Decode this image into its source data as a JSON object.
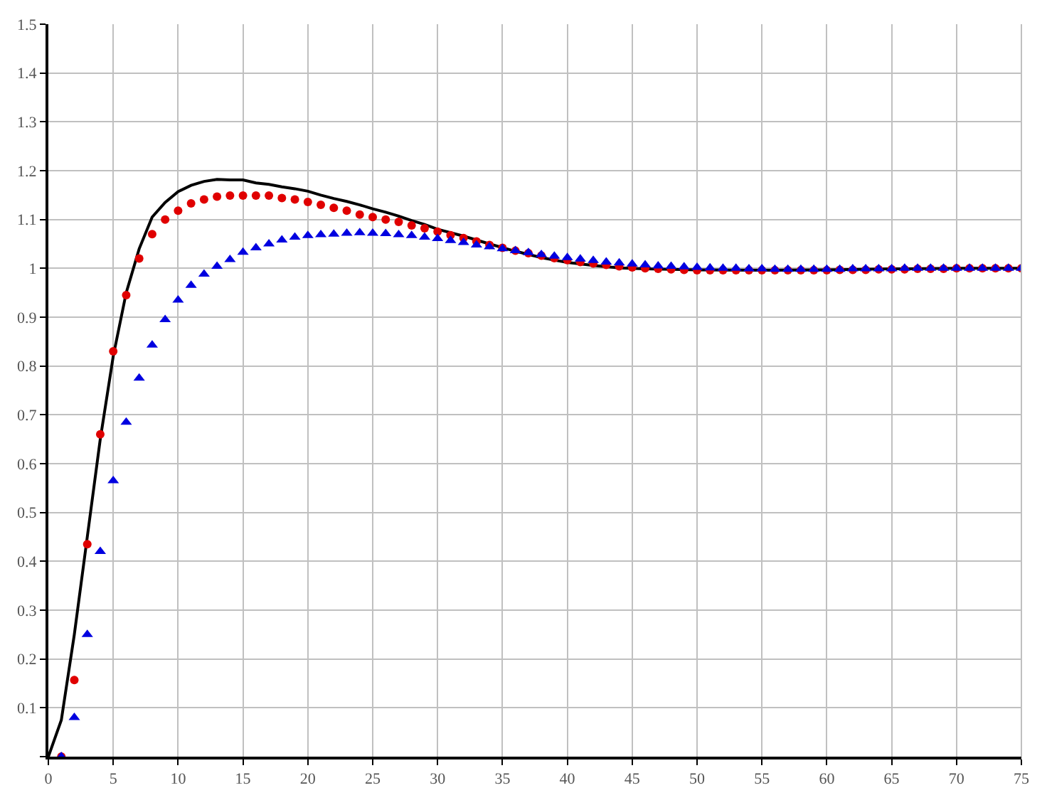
{
  "chart_data": {
    "type": "scatter",
    "xlim": [
      0,
      75
    ],
    "ylim": [
      0,
      1.5
    ],
    "xticks": [
      0,
      5,
      10,
      15,
      20,
      25,
      30,
      35,
      40,
      45,
      50,
      55,
      60,
      65,
      70,
      75
    ],
    "yticks": [
      {
        "value": 0,
        "label": null
      },
      0.1,
      0.2,
      0.3,
      0.4,
      0.5,
      0.6,
      0.7,
      0.8,
      0.9,
      1,
      1.1,
      1.2,
      1.3,
      1.4,
      1.5
    ],
    "grid": true,
    "series": [
      {
        "type": "line",
        "color": "#000000",
        "marker": "none",
        "line_style": "solid",
        "x": [
          0,
          1,
          2,
          3,
          4,
          5,
          6,
          7,
          8,
          9,
          10,
          11,
          12,
          13,
          14,
          15,
          16,
          17,
          18,
          19,
          20,
          21,
          22,
          23,
          24,
          25,
          26,
          27,
          28,
          29,
          30,
          32,
          34,
          36,
          38,
          40,
          42,
          44,
          46,
          50,
          55,
          60,
          65,
          70,
          75
        ],
        "values": [
          0,
          0.075,
          0.25,
          0.45,
          0.65,
          0.82,
          0.95,
          1.04,
          1.105,
          1.135,
          1.157,
          1.17,
          1.178,
          1.182,
          1.181,
          1.181,
          1.175,
          1.172,
          1.167,
          1.163,
          1.158,
          1.15,
          1.143,
          1.137,
          1.13,
          1.122,
          1.115,
          1.107,
          1.098,
          1.09,
          1.08,
          1.066,
          1.05,
          1.035,
          1.022,
          1.012,
          1.006,
          1.001,
          0.999,
          0.997,
          0.996,
          0.997,
          0.999,
          1.0,
          1.0
        ]
      },
      {
        "color": "#e00000",
        "marker": "circle",
        "x": [
          1,
          2,
          3,
          4,
          5,
          6,
          7,
          8,
          9,
          10,
          11,
          12,
          13,
          14,
          15,
          16,
          17,
          18,
          19,
          20,
          21,
          22,
          23,
          24,
          25,
          26,
          27,
          28,
          29,
          30,
          31,
          32,
          33,
          34,
          35,
          36,
          37,
          38,
          39,
          40,
          41,
          42,
          43,
          44,
          45,
          46,
          47,
          48,
          49,
          50,
          51,
          52,
          53,
          54,
          55,
          56,
          57,
          58,
          59,
          60,
          61,
          62,
          63,
          64,
          65,
          66,
          67,
          68,
          69,
          70,
          71,
          72,
          73,
          74,
          75
        ],
        "values": [
          0,
          0.157,
          0.435,
          0.66,
          0.83,
          0.945,
          1.02,
          1.07,
          1.1,
          1.118,
          1.133,
          1.141,
          1.147,
          1.149,
          1.149,
          1.149,
          1.149,
          1.144,
          1.141,
          1.136,
          1.13,
          1.124,
          1.118,
          1.11,
          1.105,
          1.1,
          1.095,
          1.088,
          1.082,
          1.075,
          1.068,
          1.062,
          1.055,
          1.048,
          1.042,
          1.036,
          1.031,
          1.026,
          1.021,
          1.017,
          1.013,
          1.01,
          1.007,
          1.004,
          1.002,
          1.0,
          0.999,
          0.998,
          0.997,
          0.996,
          0.996,
          0.996,
          0.996,
          0.996,
          0.996,
          0.996,
          0.996,
          0.996,
          0.996,
          0.996,
          0.997,
          0.997,
          0.997,
          0.998,
          0.998,
          0.998,
          0.999,
          0.999,
          0.999,
          1.0,
          1.0,
          1.0,
          1.0,
          1.0,
          1.0
        ]
      },
      {
        "color": "#0000e0",
        "marker": "triangle",
        "x": [
          1,
          2,
          3,
          4,
          5,
          6,
          7,
          8,
          9,
          10,
          11,
          12,
          13,
          14,
          15,
          16,
          17,
          18,
          19,
          20,
          21,
          22,
          23,
          24,
          25,
          26,
          27,
          28,
          29,
          30,
          31,
          32,
          33,
          34,
          35,
          36,
          37,
          38,
          39,
          40,
          41,
          42,
          43,
          44,
          45,
          46,
          47,
          48,
          49,
          50,
          51,
          52,
          53,
          54,
          55,
          56,
          57,
          58,
          59,
          60,
          61,
          62,
          63,
          64,
          65,
          66,
          67,
          68,
          69,
          70,
          71,
          72,
          73,
          74,
          75
        ],
        "values": [
          0,
          0.08,
          0.25,
          0.42,
          0.565,
          0.685,
          0.775,
          0.843,
          0.895,
          0.935,
          0.965,
          0.988,
          1.004,
          1.018,
          1.033,
          1.042,
          1.05,
          1.058,
          1.064,
          1.067,
          1.069,
          1.07,
          1.072,
          1.073,
          1.072,
          1.071,
          1.069,
          1.067,
          1.064,
          1.061,
          1.057,
          1.053,
          1.048,
          1.044,
          1.04,
          1.036,
          1.032,
          1.028,
          1.025,
          1.022,
          1.019,
          1.016,
          1.013,
          1.011,
          1.009,
          1.007,
          1.005,
          1.004,
          1.003,
          1.002,
          1.001,
          1.0,
          1.0,
          0.999,
          0.999,
          0.998,
          0.998,
          0.998,
          0.998,
          0.998,
          0.998,
          0.999,
          0.999,
          0.999,
          0.999,
          1.0,
          1.0,
          1.0,
          1.0,
          1.0,
          1.0,
          1.0,
          1.0,
          1.0,
          1.0
        ]
      }
    ]
  }
}
